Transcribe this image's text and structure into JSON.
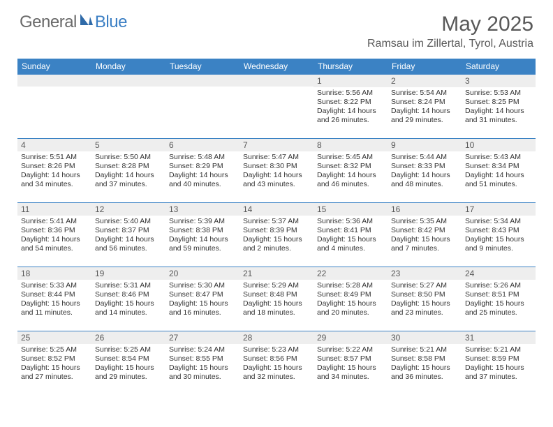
{
  "brand": {
    "general": "General",
    "blue": "Blue"
  },
  "title": "May 2025",
  "location": "Ramsau im Zillertal, Tyrol, Austria",
  "colors": {
    "header_bg": "#3b82c4",
    "header_text": "#ffffff",
    "daynum_bg": "#eeeeee",
    "daynum_text": "#595959",
    "cell_border": "#3b82c4",
    "body_text": "#333333",
    "title_text": "#595959",
    "logo_gray": "#6a6a6a",
    "logo_blue": "#3b7fc4"
  },
  "day_names": [
    "Sunday",
    "Monday",
    "Tuesday",
    "Wednesday",
    "Thursday",
    "Friday",
    "Saturday"
  ],
  "weeks": [
    [
      null,
      null,
      null,
      null,
      {
        "n": "1",
        "sr": "5:56 AM",
        "ss": "8:22 PM",
        "dl": "14 hours and 26 minutes."
      },
      {
        "n": "2",
        "sr": "5:54 AM",
        "ss": "8:24 PM",
        "dl": "14 hours and 29 minutes."
      },
      {
        "n": "3",
        "sr": "5:53 AM",
        "ss": "8:25 PM",
        "dl": "14 hours and 31 minutes."
      }
    ],
    [
      {
        "n": "4",
        "sr": "5:51 AM",
        "ss": "8:26 PM",
        "dl": "14 hours and 34 minutes."
      },
      {
        "n": "5",
        "sr": "5:50 AM",
        "ss": "8:28 PM",
        "dl": "14 hours and 37 minutes."
      },
      {
        "n": "6",
        "sr": "5:48 AM",
        "ss": "8:29 PM",
        "dl": "14 hours and 40 minutes."
      },
      {
        "n": "7",
        "sr": "5:47 AM",
        "ss": "8:30 PM",
        "dl": "14 hours and 43 minutes."
      },
      {
        "n": "8",
        "sr": "5:45 AM",
        "ss": "8:32 PM",
        "dl": "14 hours and 46 minutes."
      },
      {
        "n": "9",
        "sr": "5:44 AM",
        "ss": "8:33 PM",
        "dl": "14 hours and 48 minutes."
      },
      {
        "n": "10",
        "sr": "5:43 AM",
        "ss": "8:34 PM",
        "dl": "14 hours and 51 minutes."
      }
    ],
    [
      {
        "n": "11",
        "sr": "5:41 AM",
        "ss": "8:36 PM",
        "dl": "14 hours and 54 minutes."
      },
      {
        "n": "12",
        "sr": "5:40 AM",
        "ss": "8:37 PM",
        "dl": "14 hours and 56 minutes."
      },
      {
        "n": "13",
        "sr": "5:39 AM",
        "ss": "8:38 PM",
        "dl": "14 hours and 59 minutes."
      },
      {
        "n": "14",
        "sr": "5:37 AM",
        "ss": "8:39 PM",
        "dl": "15 hours and 2 minutes."
      },
      {
        "n": "15",
        "sr": "5:36 AM",
        "ss": "8:41 PM",
        "dl": "15 hours and 4 minutes."
      },
      {
        "n": "16",
        "sr": "5:35 AM",
        "ss": "8:42 PM",
        "dl": "15 hours and 7 minutes."
      },
      {
        "n": "17",
        "sr": "5:34 AM",
        "ss": "8:43 PM",
        "dl": "15 hours and 9 minutes."
      }
    ],
    [
      {
        "n": "18",
        "sr": "5:33 AM",
        "ss": "8:44 PM",
        "dl": "15 hours and 11 minutes."
      },
      {
        "n": "19",
        "sr": "5:31 AM",
        "ss": "8:46 PM",
        "dl": "15 hours and 14 minutes."
      },
      {
        "n": "20",
        "sr": "5:30 AM",
        "ss": "8:47 PM",
        "dl": "15 hours and 16 minutes."
      },
      {
        "n": "21",
        "sr": "5:29 AM",
        "ss": "8:48 PM",
        "dl": "15 hours and 18 minutes."
      },
      {
        "n": "22",
        "sr": "5:28 AM",
        "ss": "8:49 PM",
        "dl": "15 hours and 20 minutes."
      },
      {
        "n": "23",
        "sr": "5:27 AM",
        "ss": "8:50 PM",
        "dl": "15 hours and 23 minutes."
      },
      {
        "n": "24",
        "sr": "5:26 AM",
        "ss": "8:51 PM",
        "dl": "15 hours and 25 minutes."
      }
    ],
    [
      {
        "n": "25",
        "sr": "5:25 AM",
        "ss": "8:52 PM",
        "dl": "15 hours and 27 minutes."
      },
      {
        "n": "26",
        "sr": "5:25 AM",
        "ss": "8:54 PM",
        "dl": "15 hours and 29 minutes."
      },
      {
        "n": "27",
        "sr": "5:24 AM",
        "ss": "8:55 PM",
        "dl": "15 hours and 30 minutes."
      },
      {
        "n": "28",
        "sr": "5:23 AM",
        "ss": "8:56 PM",
        "dl": "15 hours and 32 minutes."
      },
      {
        "n": "29",
        "sr": "5:22 AM",
        "ss": "8:57 PM",
        "dl": "15 hours and 34 minutes."
      },
      {
        "n": "30",
        "sr": "5:21 AM",
        "ss": "8:58 PM",
        "dl": "15 hours and 36 minutes."
      },
      {
        "n": "31",
        "sr": "5:21 AM",
        "ss": "8:59 PM",
        "dl": "15 hours and 37 minutes."
      }
    ]
  ],
  "labels": {
    "sunrise": "Sunrise:",
    "sunset": "Sunset:",
    "daylight": "Daylight:"
  }
}
